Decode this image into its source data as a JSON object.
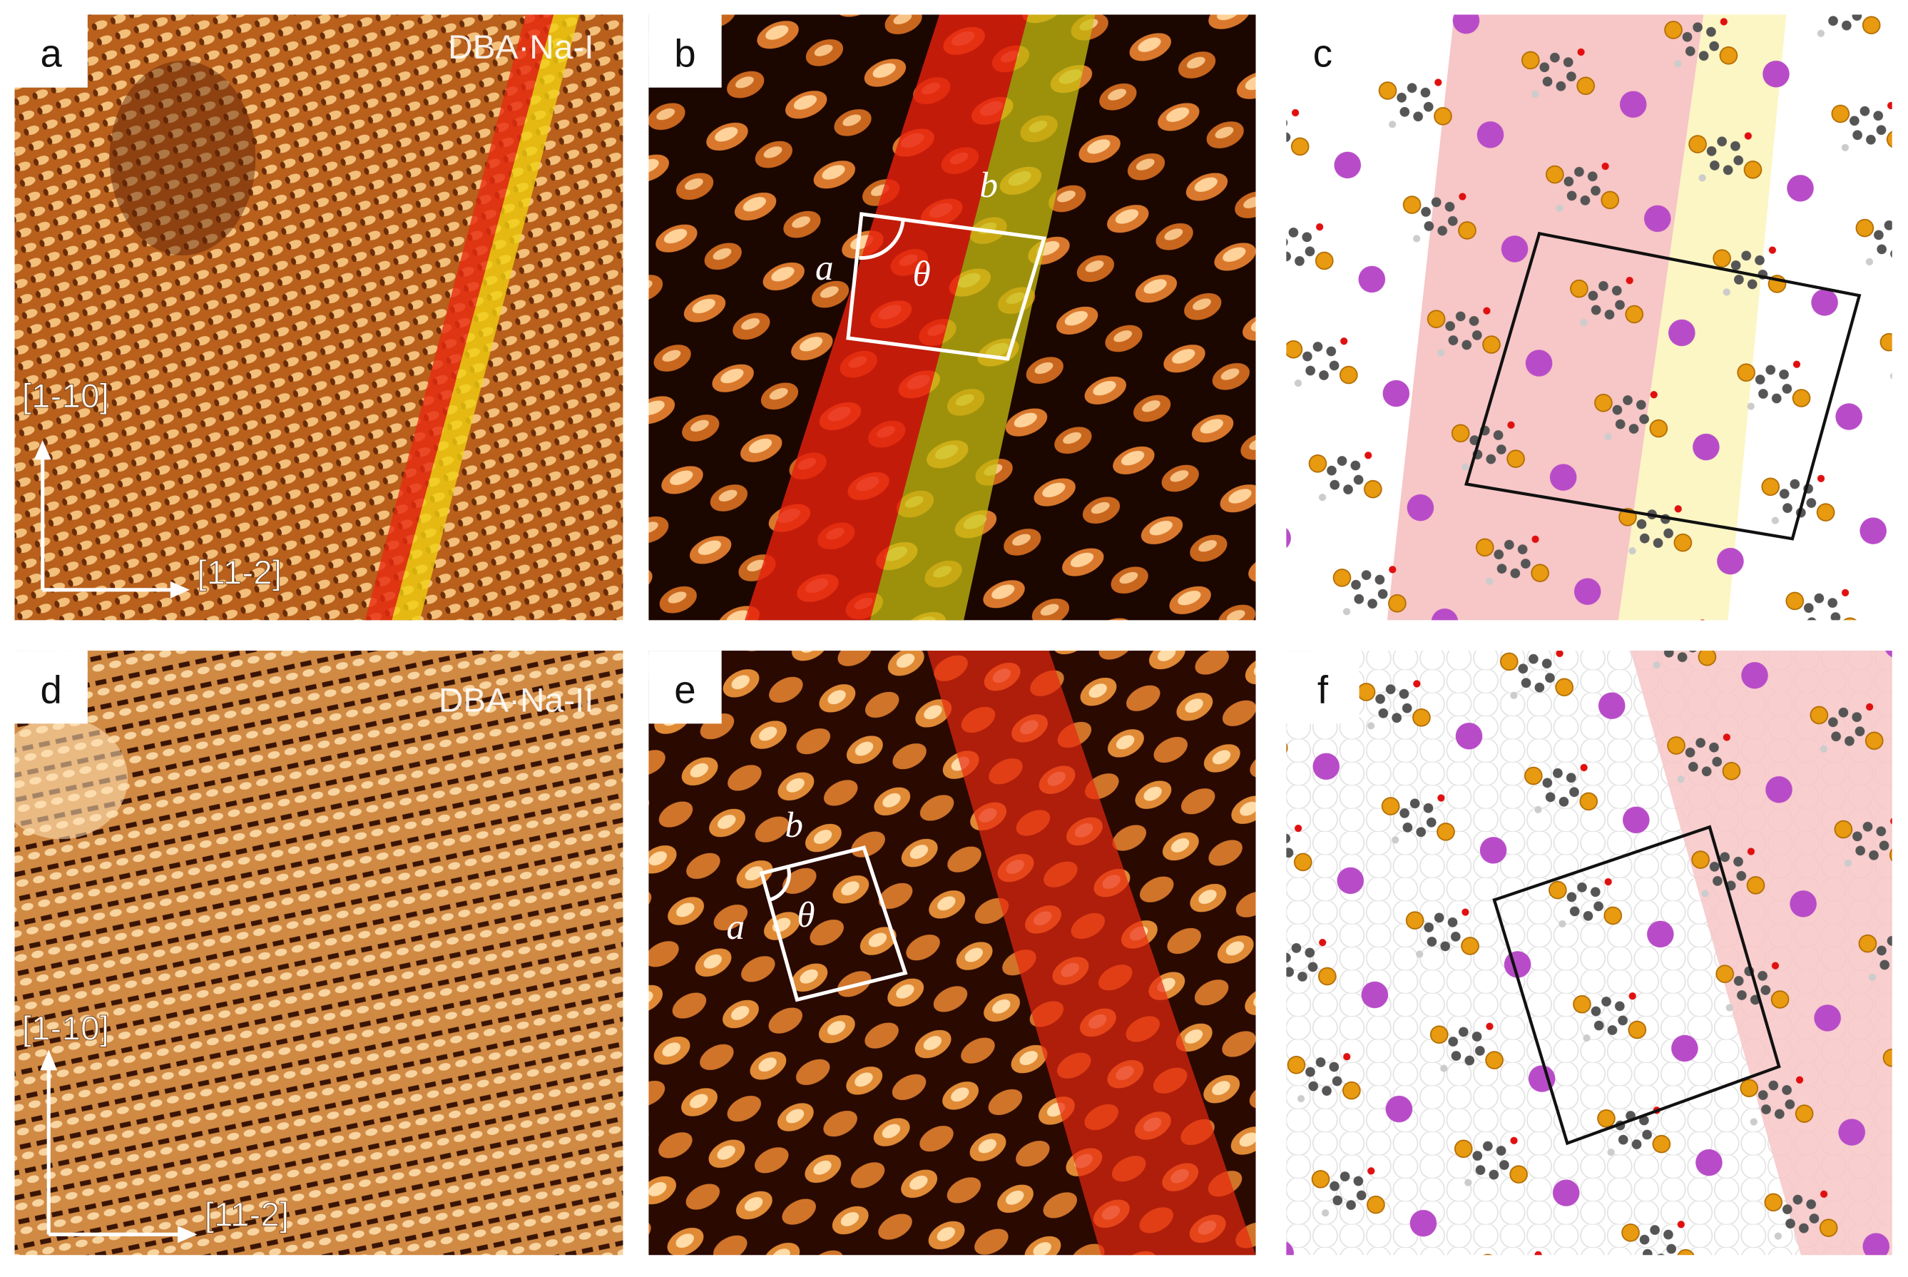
{
  "panels": [
    {
      "label": "a",
      "title": "DBA·Na-I",
      "axes": [
        "[1-10]",
        "[11-2]"
      ]
    },
    {
      "label": "b",
      "annotations": [
        "a",
        "θ",
        "b"
      ]
    },
    {
      "label": "c"
    },
    {
      "label": "d",
      "title": "DBA·Na-II",
      "axes": [
        "[1-10]",
        "[11-2]"
      ]
    },
    {
      "label": "e",
      "annotations": [
        "b",
        "a",
        "θ"
      ]
    },
    {
      "label": "f"
    }
  ]
}
